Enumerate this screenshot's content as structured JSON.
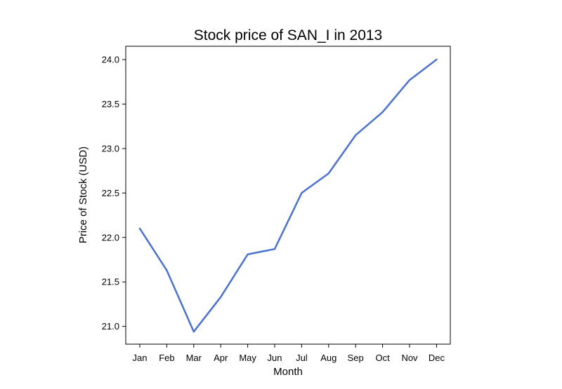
{
  "chart_data": {
    "type": "line",
    "title": "Stock price of SAN_I in 2013",
    "xlabel": "Month",
    "ylabel": "Price of Stock (USD)",
    "categories": [
      "Jan",
      "Feb",
      "Mar",
      "Apr",
      "May",
      "Jun",
      "Jul",
      "Aug",
      "Sep",
      "Oct",
      "Nov",
      "Dec"
    ],
    "series": [
      {
        "values": [
          22.1,
          21.63,
          20.94,
          21.33,
          21.81,
          21.87,
          22.5,
          22.72,
          23.15,
          23.41,
          23.77,
          24.0
        ],
        "color": "#4c72d0"
      }
    ],
    "ylim": [
      20.8,
      24.15
    ],
    "yticks": [
      21.0,
      21.5,
      22.0,
      22.5,
      23.0,
      23.5,
      24.0
    ],
    "ytick_labels": [
      "21.0",
      "21.5",
      "22.0",
      "22.5",
      "23.0",
      "23.5",
      "24.0"
    ],
    "grid": false,
    "legend": false
  }
}
